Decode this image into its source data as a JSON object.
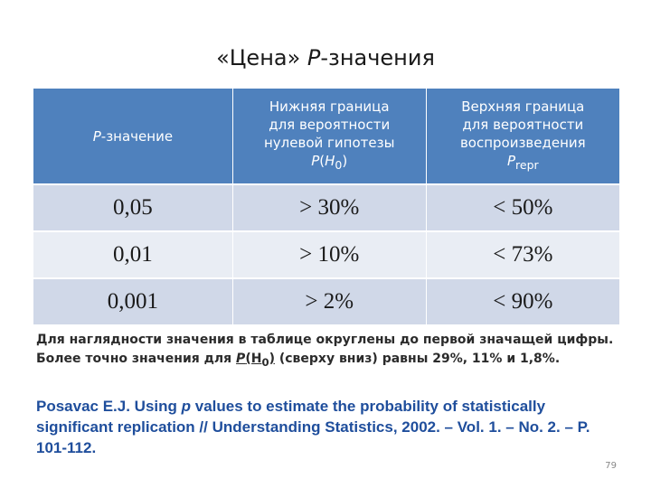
{
  "title": {
    "prefix": "«Цена» ",
    "italic": "P",
    "suffix": "-значения"
  },
  "table": {
    "headers": [
      {
        "italic": "P",
        "text": "-значение"
      },
      {
        "line1": "Нижняя граница",
        "line2": "для вероятности",
        "line3": "нулевой гипотезы",
        "p": "P",
        "open": "(",
        "h": "H",
        "sub": "0",
        "close": ")"
      },
      {
        "line1": "Верхняя граница",
        "line2": "для вероятности",
        "line3": "воспроизведения",
        "p": "P",
        "sub": "repr"
      }
    ],
    "rows": [
      {
        "p": "0,05",
        "low": "> 30%",
        "high": "< 50%"
      },
      {
        "p": "0,01",
        "low": "> 10%",
        "high": "< 73%"
      },
      {
        "p": "0,001",
        "low": "> 2%",
        "high": "< 90%"
      }
    ]
  },
  "note": {
    "part1": "Для наглядности значения в таблице округлены до первой значащей цифры. Более точно значения для ",
    "p": "P",
    "h": "(H",
    "sub": "0",
    "close": ")",
    "part2": " (сверху вниз) равны 29%, 11% и 1,8%."
  },
  "reference": {
    "part1": "Posavac E.J. Using ",
    "italic": "p",
    "part2": " values to estimate the probability of statistically significant replication // Understanding Statistics, 2002. – Vol. 1. – No. 2. – P. 101-112."
  },
  "page_number": "79"
}
